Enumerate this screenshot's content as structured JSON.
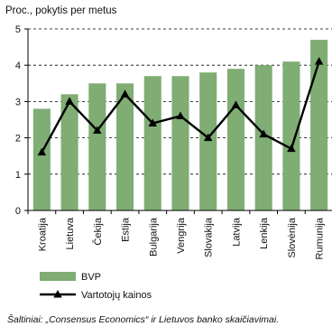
{
  "chart_data": {
    "type": "bar",
    "ylabel": "Proc., pokytis per metus",
    "ylim": [
      0,
      5
    ],
    "yticks": [
      0,
      1,
      2,
      3,
      4,
      5
    ],
    "grid": "dashed horizontal",
    "legend_position": "bottom-left",
    "categories": [
      "Kroatija",
      "Lietuva",
      "Čekija",
      "Estija",
      "Bulgarija",
      "Vengrija",
      "Slovakija",
      "Latvija",
      "Lenkija",
      "Slovėnija",
      "Rumunija"
    ],
    "series": [
      {
        "name": "BVP",
        "type": "bar",
        "color": "#7fad74",
        "values": [
          2.8,
          3.2,
          3.5,
          3.5,
          3.7,
          3.7,
          3.8,
          3.9,
          4.0,
          4.1,
          4.7
        ]
      },
      {
        "name": "Vartotojų kainos",
        "type": "line",
        "color": "#000000",
        "marker": "triangle",
        "values": [
          1.6,
          3.0,
          2.2,
          3.2,
          2.4,
          2.6,
          2.0,
          2.9,
          2.1,
          1.7,
          4.1
        ]
      }
    ]
  },
  "source": "Šaltiniai: „Consensus Economics“ ir Lietuvos banko skaičiavimai."
}
